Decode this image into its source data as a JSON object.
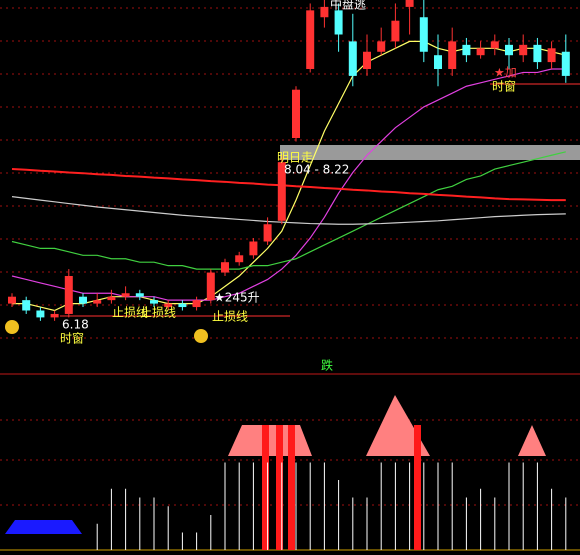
{
  "chart_data": {
    "type": "candlestick",
    "ylim": [
      0,
      100
    ],
    "up_color": "#ff3232",
    "down_color": "#54ffff",
    "open": [
      12,
      13,
      10,
      8,
      9,
      14,
      12,
      13,
      14,
      15,
      13,
      11,
      12,
      11,
      13,
      21,
      24,
      26,
      30,
      36,
      60,
      80,
      95,
      97,
      88,
      80,
      85,
      88,
      98,
      95,
      84,
      80,
      87,
      84,
      86,
      87,
      84,
      87,
      82,
      85
    ],
    "close": [
      14,
      10,
      8,
      9,
      20,
      12,
      13,
      14,
      15,
      14,
      12,
      12,
      11,
      13,
      21,
      24,
      26,
      30,
      35,
      53,
      74,
      97,
      98,
      90,
      78,
      85,
      88,
      94,
      100,
      85,
      80,
      88,
      84,
      86,
      88,
      84,
      87,
      82,
      86,
      78
    ],
    "high": [
      15,
      14,
      11,
      10,
      22,
      15,
      15,
      16,
      17,
      16,
      14,
      13,
      13,
      14,
      22,
      25,
      27,
      31,
      37,
      55,
      75,
      99,
      100,
      99,
      96,
      90,
      92,
      99,
      100,
      100,
      90,
      92,
      89,
      88,
      90,
      89,
      90,
      89,
      88,
      90
    ],
    "low": [
      11,
      9,
      7,
      7,
      8,
      11,
      11,
      12,
      13,
      13,
      11,
      10,
      10,
      10,
      12,
      20,
      23,
      25,
      29,
      35,
      59,
      79,
      92,
      85,
      75,
      78,
      84,
      86,
      90,
      82,
      75,
      78,
      82,
      83,
      84,
      80,
      82,
      80,
      80,
      76
    ],
    "overlays": [
      {
        "color": "#ffff66",
        "values": [
          12,
          12,
          11,
          10,
          12,
          12,
          13,
          14,
          14,
          14,
          13,
          12,
          12,
          12,
          14,
          17,
          20,
          24,
          28,
          33,
          42,
          52,
          62,
          70,
          78,
          82,
          84,
          86,
          88,
          88,
          86,
          85,
          86,
          86,
          86,
          85,
          86,
          86,
          85,
          84
        ]
      },
      {
        "color": "#e040e0",
        "values": [
          20,
          19,
          18,
          17,
          16,
          15,
          15,
          15,
          14,
          14,
          14,
          13,
          13,
          13,
          13,
          14,
          15,
          17,
          19,
          22,
          26,
          31,
          37,
          44,
          50,
          55,
          59,
          63,
          66,
          69,
          71,
          73,
          75,
          76,
          77,
          78,
          79,
          79,
          80,
          80
        ]
      },
      {
        "color": "#40d040",
        "values": [
          30,
          29,
          28,
          28,
          27,
          26,
          26,
          25,
          25,
          24,
          24,
          23,
          23,
          22,
          22,
          22,
          22,
          23,
          23,
          24,
          25,
          27,
          29,
          31,
          33,
          35,
          37,
          39,
          41,
          43,
          45,
          46,
          48,
          49,
          51,
          52,
          53,
          54,
          55,
          56
        ]
      },
      {
        "color": "#ff2020",
        "values": [
          51,
          50.8,
          50.5,
          50.3,
          50,
          49.8,
          49.5,
          49.3,
          49,
          48.8,
          48.5,
          48.3,
          48,
          47.8,
          47.5,
          47.3,
          47,
          46.8,
          46.5,
          46.3,
          46,
          45.8,
          45.5,
          45.3,
          45,
          44.8,
          44.5,
          44.3,
          44,
          43.8,
          43.5,
          43.3,
          43,
          42.8,
          42.5,
          42.3,
          42.2,
          42.1,
          42,
          42
        ]
      },
      {
        "color": "#cccccc",
        "values": [
          43,
          42.5,
          42,
          41.5,
          41,
          40.5,
          40,
          39.6,
          39.2,
          38.8,
          38.4,
          38,
          37.6,
          37.3,
          37,
          36.7,
          36.4,
          36.1,
          35.8,
          35.6,
          35.4,
          35.2,
          35.1,
          35,
          35,
          35.1,
          35.2,
          35.4,
          35.6,
          35.8,
          36,
          36.3,
          36.6,
          36.9,
          37.2,
          37.4,
          37.6,
          37.8,
          37.9,
          38
        ]
      }
    ],
    "annotations": [
      "中盘逃",
      "明日走",
      "8.04 - 8.22",
      "★245升",
      "止损线",
      "止损线",
      "止损线",
      "6.18",
      "时窗",
      "时窗",
      "★加",
      "跌"
    ],
    "indicator_ylim": [
      0,
      100
    ],
    "indicator_values": [
      0,
      0,
      0,
      0,
      0,
      0,
      15,
      35,
      35,
      30,
      30,
      25,
      10,
      10,
      20,
      50,
      50,
      50,
      50,
      50,
      50,
      50,
      50,
      40,
      30,
      30,
      50,
      50,
      50,
      50,
      50,
      50,
      30,
      35,
      30,
      50,
      50,
      50,
      35,
      30
    ]
  }
}
